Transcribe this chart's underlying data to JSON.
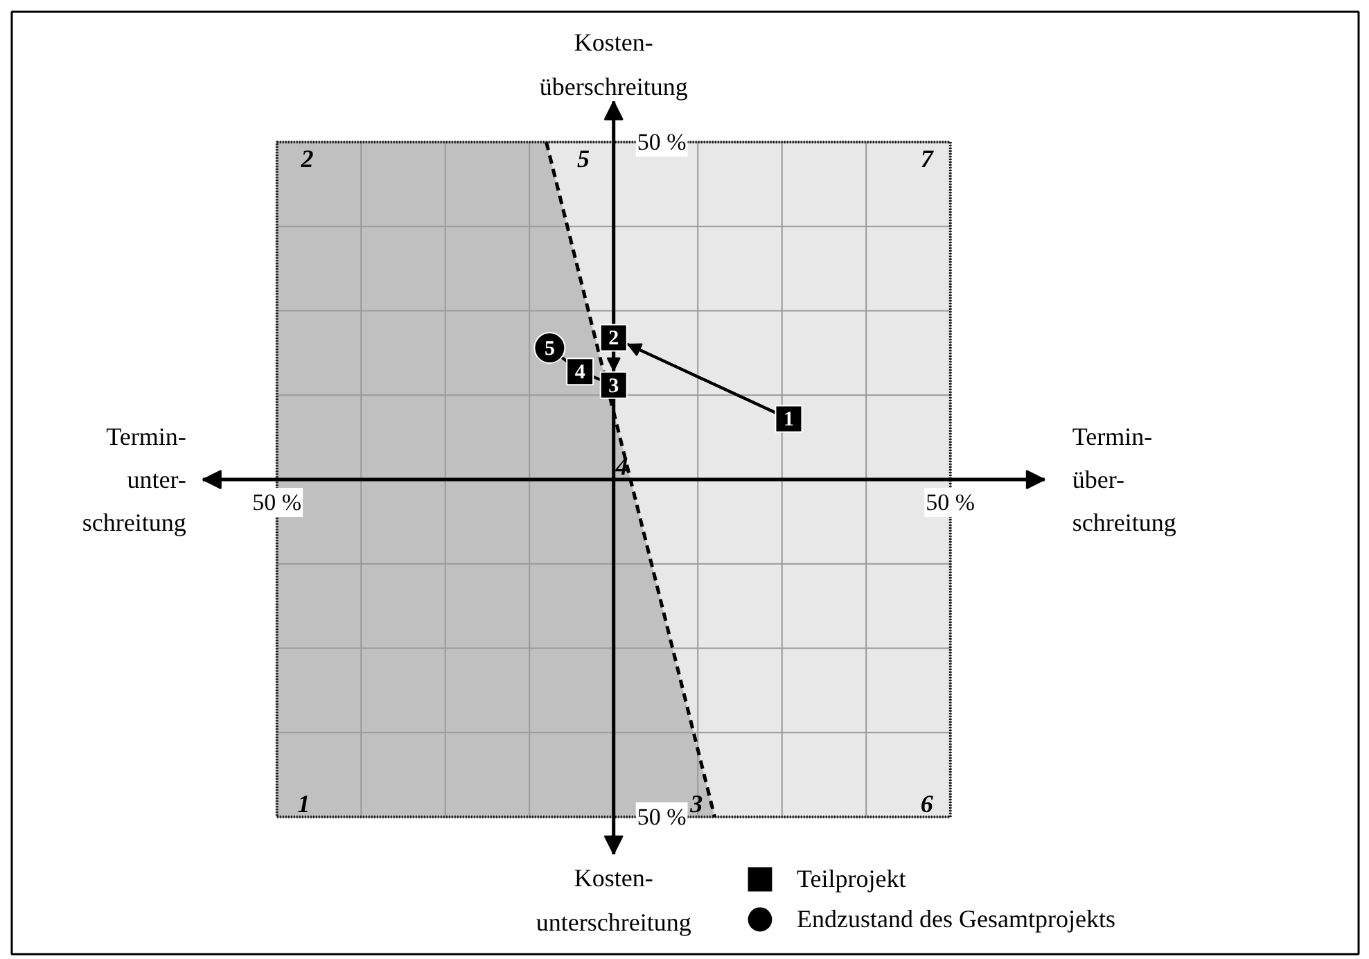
{
  "chart_data": {
    "type": "scatter",
    "xlabel": "Termin-\nüber-\nschreitung",
    "ylabel": "Kosten-\nüberschreitung",
    "xlim": [
      -61,
      64
    ],
    "ylim": [
      -55.5,
      56
    ],
    "xticks": [
      {
        "value": -50,
        "label": "50 %"
      },
      {
        "value": -37.5,
        "label": null
      },
      {
        "value": -25,
        "label": null
      },
      {
        "value": -12.5,
        "label": null
      },
      {
        "value": 0,
        "label": null
      },
      {
        "value": 12.5,
        "label": null
      },
      {
        "value": 25,
        "label": null
      },
      {
        "value": 37.5,
        "label": null
      },
      {
        "value": 50,
        "label": "50 %"
      }
    ],
    "yticks": [
      {
        "value": -50,
        "label": "50 %"
      },
      {
        "value": -37.5,
        "label": null
      },
      {
        "value": -25,
        "label": null
      },
      {
        "value": -12.5,
        "label": null
      },
      {
        "value": 0,
        "label": null
      },
      {
        "value": 12.5,
        "label": null
      },
      {
        "value": 25,
        "label": null
      },
      {
        "value": 37.5,
        "label": null
      },
      {
        "value": 50,
        "label": "50 %"
      }
    ],
    "grid": true,
    "legend": "bottom right",
    "series": [
      {
        "type": "area",
        "color": "#c0c0c0",
        "line_style": "dashed",
        "x": [
          -50,
          -50,
          -10,
          15
        ],
        "values": [
          -50,
          50,
          50,
          -50
        ]
      },
      {
        "type": "line",
        "color": "#000000",
        "x": [
          26,
          0,
          0,
          -5,
          -9.5
        ],
        "values": [
          9,
          21,
          14,
          16,
          19.5
        ]
      },
      {
        "name": "Teilprojekt",
        "marker": "square",
        "color": "#000000",
        "x": [
          26,
          0,
          0,
          -5
        ],
        "values": [
          9,
          21,
          14,
          16
        ]
      },
      {
        "name": "Endzustand des Gesamtprojekts",
        "marker": "circle",
        "color": "#000000",
        "x": [
          -9.5
        ],
        "values": [
          19.5
        ]
      }
    ],
    "annotations": [
      "Termin-\nunter-\nschreitung",
      "Kosten-\nunterschreitung",
      "1",
      "2",
      "3",
      "4",
      "5",
      "6",
      "7",
      {
        "text": "1",
        "x": 26,
        "y": 9
      },
      {
        "text": "2",
        "x": 0,
        "y": 21
      },
      {
        "text": "3",
        "x": 0,
        "y": 14
      },
      {
        "text": "4",
        "x": -5,
        "y": 16
      },
      {
        "text": "5",
        "x": -9.5,
        "y": 19.5
      }
    ]
  }
}
